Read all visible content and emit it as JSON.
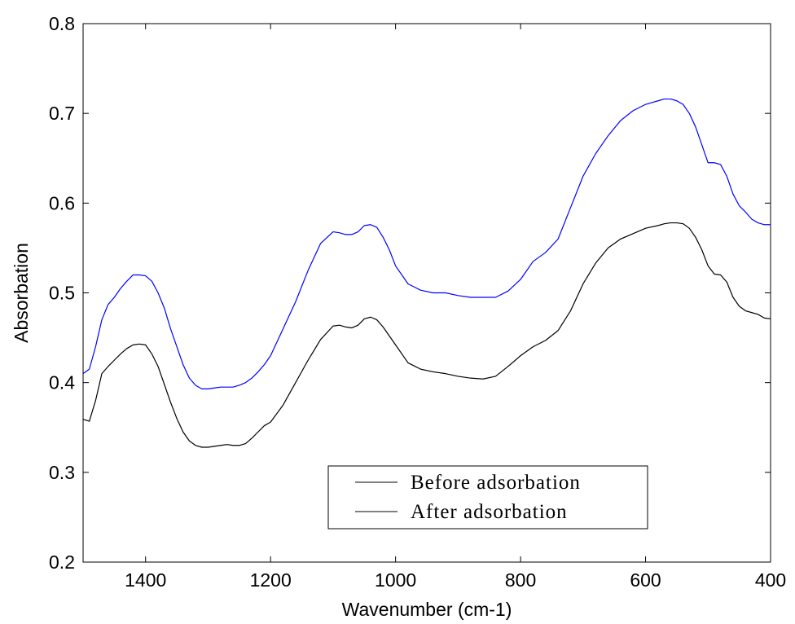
{
  "chart_data": {
    "type": "line",
    "title": "",
    "xlabel": "Wavenumber (cm-1)",
    "ylabel": "Absorbation",
    "xlim": [
      1500,
      400
    ],
    "ylim": [
      0.2,
      0.8
    ],
    "x_reversed": true,
    "grid": false,
    "legend_position": "bottom-center",
    "x_ticks": [
      "1400",
      "1200",
      "1000",
      "800",
      "600",
      "400"
    ],
    "y_ticks": [
      "0.2",
      "0.3",
      "0.4",
      "0.5",
      "0.6",
      "0.7",
      "0.8"
    ],
    "series": [
      {
        "name": "Before adsorbation",
        "color": "#0000ff",
        "x": [
          1500,
          1490,
          1480,
          1470,
          1460,
          1450,
          1440,
          1430,
          1420,
          1410,
          1400,
          1390,
          1380,
          1370,
          1360,
          1350,
          1340,
          1330,
          1320,
          1310,
          1300,
          1290,
          1280,
          1270,
          1260,
          1250,
          1240,
          1230,
          1220,
          1210,
          1200,
          1180,
          1160,
          1140,
          1120,
          1100,
          1090,
          1080,
          1070,
          1060,
          1050,
          1040,
          1030,
          1020,
          1010,
          1000,
          980,
          960,
          940,
          920,
          900,
          880,
          860,
          840,
          820,
          800,
          780,
          760,
          740,
          720,
          700,
          680,
          660,
          640,
          620,
          600,
          580,
          570,
          560,
          550,
          540,
          530,
          520,
          510,
          500,
          490,
          480,
          470,
          460,
          450,
          440,
          430,
          420,
          410,
          400
        ],
        "y": [
          0.41,
          0.415,
          0.44,
          0.47,
          0.487,
          0.495,
          0.505,
          0.513,
          0.52,
          0.52,
          0.519,
          0.513,
          0.5,
          0.483,
          0.46,
          0.44,
          0.42,
          0.405,
          0.397,
          0.393,
          0.393,
          0.394,
          0.395,
          0.395,
          0.395,
          0.397,
          0.4,
          0.405,
          0.412,
          0.42,
          0.43,
          0.46,
          0.49,
          0.525,
          0.555,
          0.568,
          0.567,
          0.565,
          0.565,
          0.568,
          0.575,
          0.576,
          0.573,
          0.562,
          0.548,
          0.53,
          0.51,
          0.503,
          0.5,
          0.5,
          0.497,
          0.495,
          0.495,
          0.495,
          0.502,
          0.515,
          0.535,
          0.545,
          0.56,
          0.595,
          0.63,
          0.655,
          0.675,
          0.692,
          0.703,
          0.71,
          0.714,
          0.716,
          0.716,
          0.714,
          0.71,
          0.7,
          0.685,
          0.665,
          0.645,
          0.645,
          0.643,
          0.63,
          0.61,
          0.597,
          0.59,
          0.582,
          0.578,
          0.576,
          0.576
        ]
      },
      {
        "name": "After adsorbation",
        "color": "#000000",
        "x": [
          1500,
          1490,
          1480,
          1470,
          1460,
          1450,
          1440,
          1430,
          1420,
          1410,
          1400,
          1390,
          1380,
          1370,
          1360,
          1350,
          1340,
          1330,
          1320,
          1310,
          1300,
          1290,
          1280,
          1270,
          1260,
          1250,
          1240,
          1230,
          1220,
          1210,
          1200,
          1180,
          1160,
          1140,
          1120,
          1100,
          1090,
          1080,
          1070,
          1060,
          1050,
          1040,
          1030,
          1020,
          1010,
          1000,
          980,
          960,
          940,
          920,
          900,
          880,
          860,
          840,
          820,
          800,
          780,
          760,
          740,
          720,
          700,
          680,
          660,
          640,
          620,
          600,
          580,
          570,
          560,
          550,
          540,
          530,
          520,
          510,
          500,
          490,
          480,
          470,
          460,
          450,
          440,
          430,
          420,
          410,
          400
        ],
        "y": [
          0.359,
          0.357,
          0.38,
          0.41,
          0.418,
          0.425,
          0.432,
          0.438,
          0.442,
          0.443,
          0.442,
          0.432,
          0.418,
          0.398,
          0.378,
          0.36,
          0.345,
          0.335,
          0.33,
          0.328,
          0.328,
          0.329,
          0.33,
          0.331,
          0.33,
          0.33,
          0.332,
          0.338,
          0.345,
          0.352,
          0.356,
          0.375,
          0.4,
          0.425,
          0.448,
          0.463,
          0.464,
          0.462,
          0.461,
          0.464,
          0.471,
          0.473,
          0.47,
          0.462,
          0.452,
          0.442,
          0.422,
          0.415,
          0.412,
          0.41,
          0.407,
          0.405,
          0.404,
          0.407,
          0.418,
          0.43,
          0.44,
          0.447,
          0.458,
          0.48,
          0.51,
          0.533,
          0.55,
          0.56,
          0.566,
          0.572,
          0.575,
          0.577,
          0.578,
          0.578,
          0.577,
          0.572,
          0.562,
          0.548,
          0.53,
          0.521,
          0.52,
          0.512,
          0.495,
          0.485,
          0.48,
          0.478,
          0.476,
          0.472,
          0.471
        ]
      }
    ]
  }
}
